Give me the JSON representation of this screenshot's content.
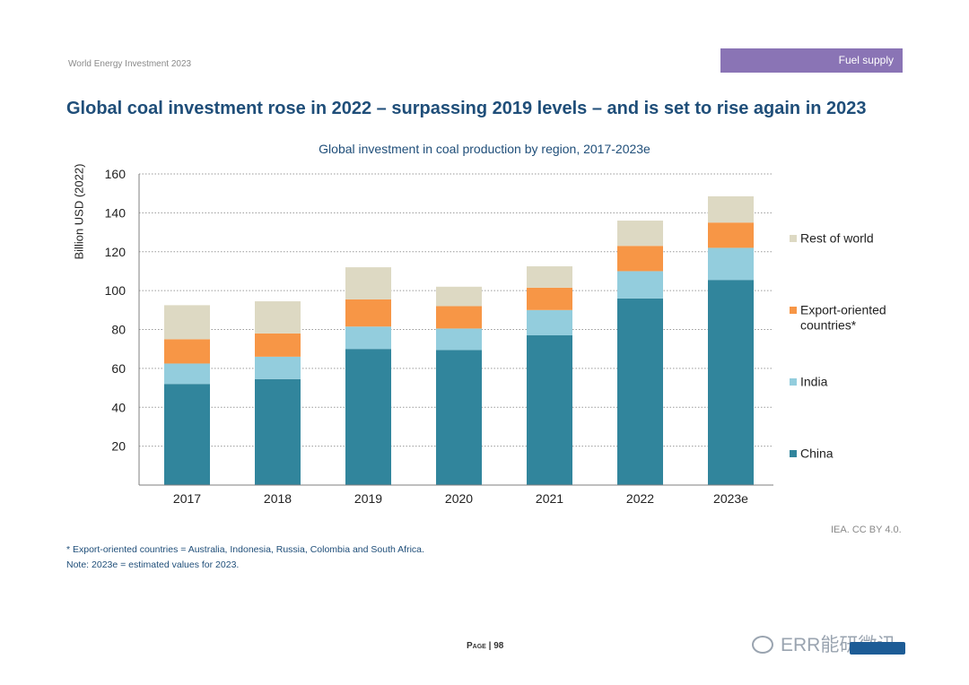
{
  "header": {
    "report_name": "World Energy Investment 2023",
    "section_tag": "Fuel supply"
  },
  "headline": "Global coal investment rose in 2022 – surpassing 2019 levels – and is set to rise again in 2023",
  "chart_data": {
    "type": "bar",
    "stacked": true,
    "title": "Global investment in coal production by region, 2017-2023e",
    "xlabel": "",
    "ylabel": "Billion USD (2022)",
    "ylim": [
      0,
      160
    ],
    "yticks": [
      20,
      40,
      60,
      80,
      100,
      120,
      140,
      160
    ],
    "grid": true,
    "legend_position": "right",
    "categories": [
      "2017",
      "2018",
      "2019",
      "2020",
      "2021",
      "2022",
      "2023e"
    ],
    "series": [
      {
        "name": "China",
        "color": "#31859c",
        "values": [
          52,
          54.5,
          70,
          69.5,
          77,
          96,
          105.5
        ]
      },
      {
        "name": "India",
        "color": "#93cddd",
        "values": [
          10.5,
          11.5,
          11.5,
          11,
          13,
          14,
          16.5
        ]
      },
      {
        "name": "Export-oriented countries*",
        "color": "#f79646",
        "values": [
          12.5,
          12,
          14,
          11.5,
          11.5,
          13,
          13
        ]
      },
      {
        "name": "Rest of world",
        "color": "#ddd9c3",
        "values": [
          17.5,
          16.5,
          16.5,
          10,
          11,
          13,
          13.5
        ]
      }
    ],
    "legend_order": [
      "Rest of world",
      "Export-oriented countries*",
      "India",
      "China"
    ]
  },
  "source": "IEA. CC BY 4.0.",
  "notes": [
    "* Export-oriented countries = Australia, Indonesia, Russia, Colombia and South Africa.",
    "Note:  2023e = estimated values for 2023."
  ],
  "footer": {
    "page": "Page | 98",
    "watermark": "ERR能研微讯"
  }
}
